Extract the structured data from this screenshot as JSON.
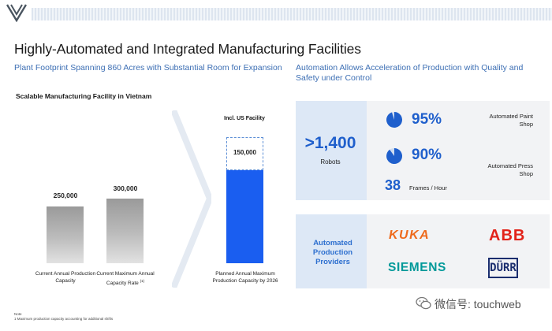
{
  "header": {
    "logo_icon": "vinfast-v-logo-icon",
    "title": "Highly-Automated and Integrated Manufacturing Facilities",
    "subtitle_left": "Plant Footprint Spanning 860 Acres with Substantial Room for Expansion",
    "subtitle_right": "Automation Allows Acceleration of Production with Quality and Safety under Control"
  },
  "left_chart": {
    "section_title": "Scalable Manufacturing Facility in Vietnam",
    "bars": [
      {
        "value_label": "250,000",
        "label": "Current Annual Production Capacity",
        "footnote_mark": ""
      },
      {
        "value_label": "300,000",
        "label": "Current Maximum Annual Capacity Rate",
        "footnote_mark": "(1)"
      }
    ],
    "planned": {
      "header": "Incl. US Facility",
      "us_value_label": "150,000",
      "label": "Planned Annual Maximum Production Capacity by 2026"
    },
    "chevron_icon": "chevron-right-icon"
  },
  "chart_data": {
    "type": "bar",
    "categories": [
      "Current Annual Production Capacity",
      "Current Maximum Annual Capacity Rate",
      "Planned Annual Maximum Production Capacity by 2026"
    ],
    "values": [
      250000,
      300000,
      null
    ],
    "annotations": [
      "Incl. US Facility",
      "150,000"
    ]
  },
  "automation": {
    "robots_value": ">1,400",
    "robots_label": "Robots",
    "paint_shop": {
      "percent": "95%",
      "label": "Automated Paint Shop",
      "fill_fraction": 0.95,
      "icon": "pie-chart-icon"
    },
    "press_shop": {
      "percent": "90%",
      "label": "Automated Press Shop",
      "fill_fraction": 0.9,
      "icon": "pie-chart-icon"
    },
    "frames_value": "38",
    "frames_label": "Frames / Hour"
  },
  "providers": {
    "label": "Automated Production Providers",
    "logos": [
      "KUKA",
      "ABB",
      "SIEMENS",
      "DÜRR"
    ]
  },
  "note": {
    "heading": "Note",
    "text": "1   Maximum production capacity accounting for additional shifts"
  },
  "watermark": {
    "icon": "wechat-icon",
    "text": "微信号: touchweb"
  },
  "colors": {
    "accent_blue": "#1a5ef0",
    "title_blue": "#1f5fcc",
    "subtitle_blue": "#3d6fb4",
    "kuka_orange": "#ee6a1c",
    "abb_red": "#e2231a",
    "siemens_teal": "#009999",
    "durr_navy": "#1a2d6e"
  }
}
